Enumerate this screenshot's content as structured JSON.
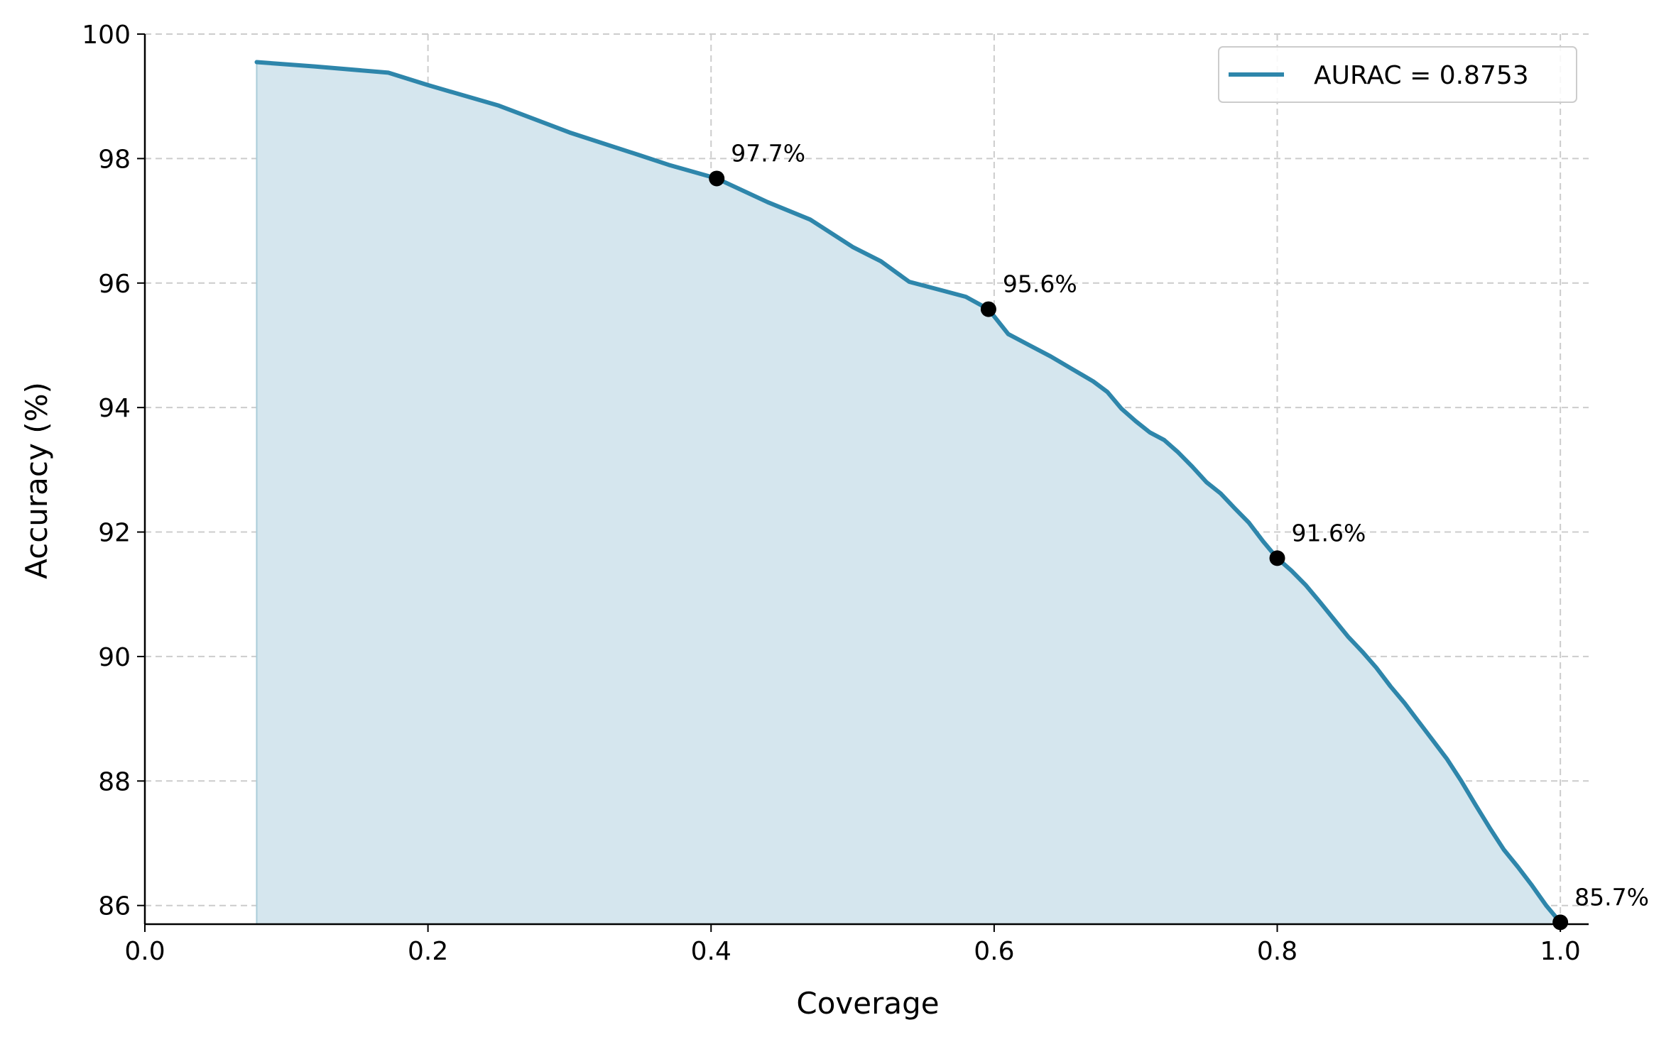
{
  "chart_data": {
    "type": "area",
    "title": "",
    "xlabel": "Coverage",
    "ylabel": "Accuracy (%)",
    "xlim": [
      0.0,
      1.02
    ],
    "ylim": [
      85.7,
      100
    ],
    "x_ticks": [
      "0.0",
      "0.2",
      "0.4",
      "0.6",
      "0.8",
      "1.0"
    ],
    "y_ticks": [
      "86",
      "88",
      "90",
      "92",
      "94",
      "96",
      "98",
      "100"
    ],
    "grid": true,
    "legend_position": "top-right",
    "line_color": "#2e86ab",
    "fill_color": "#d5e6ee",
    "series": [
      {
        "name": "AURAC = 0.8753",
        "x": [
          0.079,
          0.12,
          0.172,
          0.2,
          0.25,
          0.3,
          0.35,
          0.37,
          0.404,
          0.44,
          0.47,
          0.5,
          0.52,
          0.54,
          0.56,
          0.58,
          0.596,
          0.61,
          0.625,
          0.64,
          0.655,
          0.67,
          0.68,
          0.69,
          0.7,
          0.71,
          0.72,
          0.73,
          0.74,
          0.75,
          0.76,
          0.77,
          0.78,
          0.79,
          0.8,
          0.81,
          0.82,
          0.83,
          0.84,
          0.85,
          0.86,
          0.87,
          0.88,
          0.89,
          0.9,
          0.91,
          0.92,
          0.93,
          0.94,
          0.95,
          0.96,
          0.97,
          0.98,
          0.99,
          1.0
        ],
        "y": [
          99.55,
          99.48,
          99.38,
          99.18,
          98.85,
          98.42,
          98.05,
          97.9,
          97.68,
          97.3,
          97.02,
          96.58,
          96.35,
          96.02,
          95.9,
          95.78,
          95.58,
          95.18,
          95.0,
          94.82,
          94.62,
          94.42,
          94.25,
          93.98,
          93.78,
          93.6,
          93.48,
          93.28,
          93.05,
          92.8,
          92.62,
          92.38,
          92.15,
          91.85,
          91.58,
          91.38,
          91.15,
          90.88,
          90.6,
          90.32,
          90.08,
          89.82,
          89.52,
          89.25,
          88.95,
          88.65,
          88.35,
          88.0,
          87.62,
          87.25,
          86.9,
          86.62,
          86.32,
          86.0,
          85.73
        ]
      }
    ],
    "highlight_points": [
      {
        "x": 0.404,
        "y": 97.68,
        "label": "97.7%"
      },
      {
        "x": 0.596,
        "y": 95.58,
        "label": "95.6%"
      },
      {
        "x": 0.8,
        "y": 91.58,
        "label": "91.6%"
      },
      {
        "x": 1.0,
        "y": 85.73,
        "label": "85.7%"
      }
    ]
  }
}
